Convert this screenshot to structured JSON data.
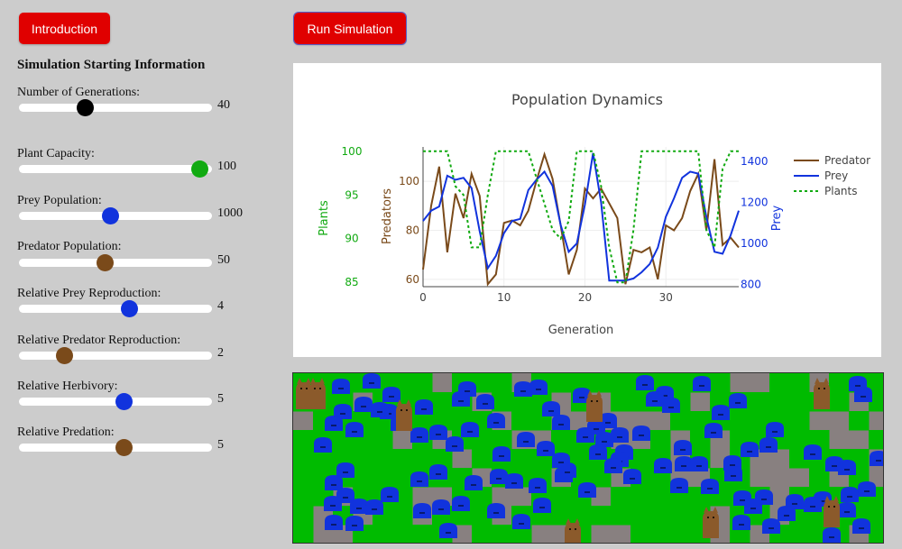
{
  "buttons": {
    "intro_label": "Introduction",
    "run_label": "Run Simulation"
  },
  "panel": {
    "title": "Simulation Starting Information"
  },
  "sliders": [
    {
      "label": "Number of Generations:",
      "value": "40",
      "fraction": 0.35,
      "color": "#000000"
    },
    {
      "label": "Plant Capacity:",
      "value": "100",
      "fraction": 1.0,
      "color": "#11aa11"
    },
    {
      "label": "Prey Population:",
      "value": "1000",
      "fraction": 0.49,
      "color": "#1133dd"
    },
    {
      "label": "Predator Population:",
      "value": "50",
      "fraction": 0.46,
      "color": "#7a4a1a"
    },
    {
      "label": "Relative Prey Reproduction:",
      "value": "4",
      "fraction": 0.6,
      "color": "#1133dd"
    },
    {
      "label": "Relative Predator Reproduction:",
      "value": "2",
      "fraction": 0.23,
      "color": "#7a4a1a"
    },
    {
      "label": "Relative Herbivory:",
      "value": "5",
      "fraction": 0.57,
      "color": "#1133dd"
    },
    {
      "label": "Relative Predation:",
      "value": "5",
      "fraction": 0.57,
      "color": "#7a4a1a"
    }
  ],
  "chart_data": {
    "type": "line",
    "title": "Population Dynamics",
    "xlabel": "Generation",
    "x_ticks": [
      0,
      10,
      20,
      30
    ],
    "xlim": [
      0,
      39
    ],
    "grid": true,
    "legend_position": "top-right",
    "axes": {
      "predators": {
        "label": "Predators",
        "ticks": [
          60,
          80,
          100
        ],
        "range": [
          57,
          114
        ],
        "color": "#7a4a1a"
      },
      "plants": {
        "label": "Plants",
        "ticks": [
          85,
          90,
          95,
          100
        ],
        "range": [
          84.5,
          100.5
        ],
        "color": "#11aa11"
      },
      "prey": {
        "label": "Prey",
        "ticks": [
          800,
          1000,
          1200,
          1400
        ],
        "range": [
          790,
          1470
        ],
        "color": "#1133dd"
      }
    },
    "series": [
      {
        "name": "Predator",
        "axis": "predators",
        "color": "#7a4a1a",
        "dash": "solid",
        "values": [
          64,
          90,
          106,
          71,
          95,
          85,
          103,
          94,
          58,
          62,
          83,
          84,
          82,
          88,
          100,
          111,
          101,
          82,
          62,
          72,
          97,
          93,
          97,
          91,
          85,
          58,
          72,
          71,
          73,
          60,
          82,
          80,
          85,
          96,
          103,
          80,
          109,
          74,
          77,
          73
        ]
      },
      {
        "name": "Prey",
        "axis": "prey",
        "color": "#1133dd",
        "dash": "solid",
        "values": [
          1110,
          1160,
          1180,
          1330,
          1310,
          1320,
          1270,
          1060,
          880,
          940,
          1050,
          1110,
          1120,
          1260,
          1310,
          1350,
          1280,
          1090,
          960,
          1000,
          1190,
          1440,
          1200,
          820,
          820,
          820,
          830,
          860,
          900,
          980,
          1130,
          1220,
          1320,
          1350,
          1340,
          1130,
          960,
          950,
          1040,
          1160
        ]
      },
      {
        "name": "Plants",
        "axis": "plants",
        "color": "#11aa11",
        "dash": "dotted",
        "values": [
          100,
          100,
          100,
          100,
          96,
          95,
          89,
          89,
          95,
          100,
          100,
          100,
          100,
          100,
          97,
          94,
          91,
          90,
          92,
          100,
          100,
          100,
          96,
          89,
          85,
          85,
          91,
          100,
          100,
          100,
          100,
          100,
          100,
          100,
          100,
          91,
          89,
          98,
          100,
          100
        ]
      }
    ]
  },
  "simulation": {
    "grass_color": "#00bb00",
    "soil_color": "#888080",
    "prey_color": "#1133dd",
    "predator_color": "#8b5a2b"
  }
}
